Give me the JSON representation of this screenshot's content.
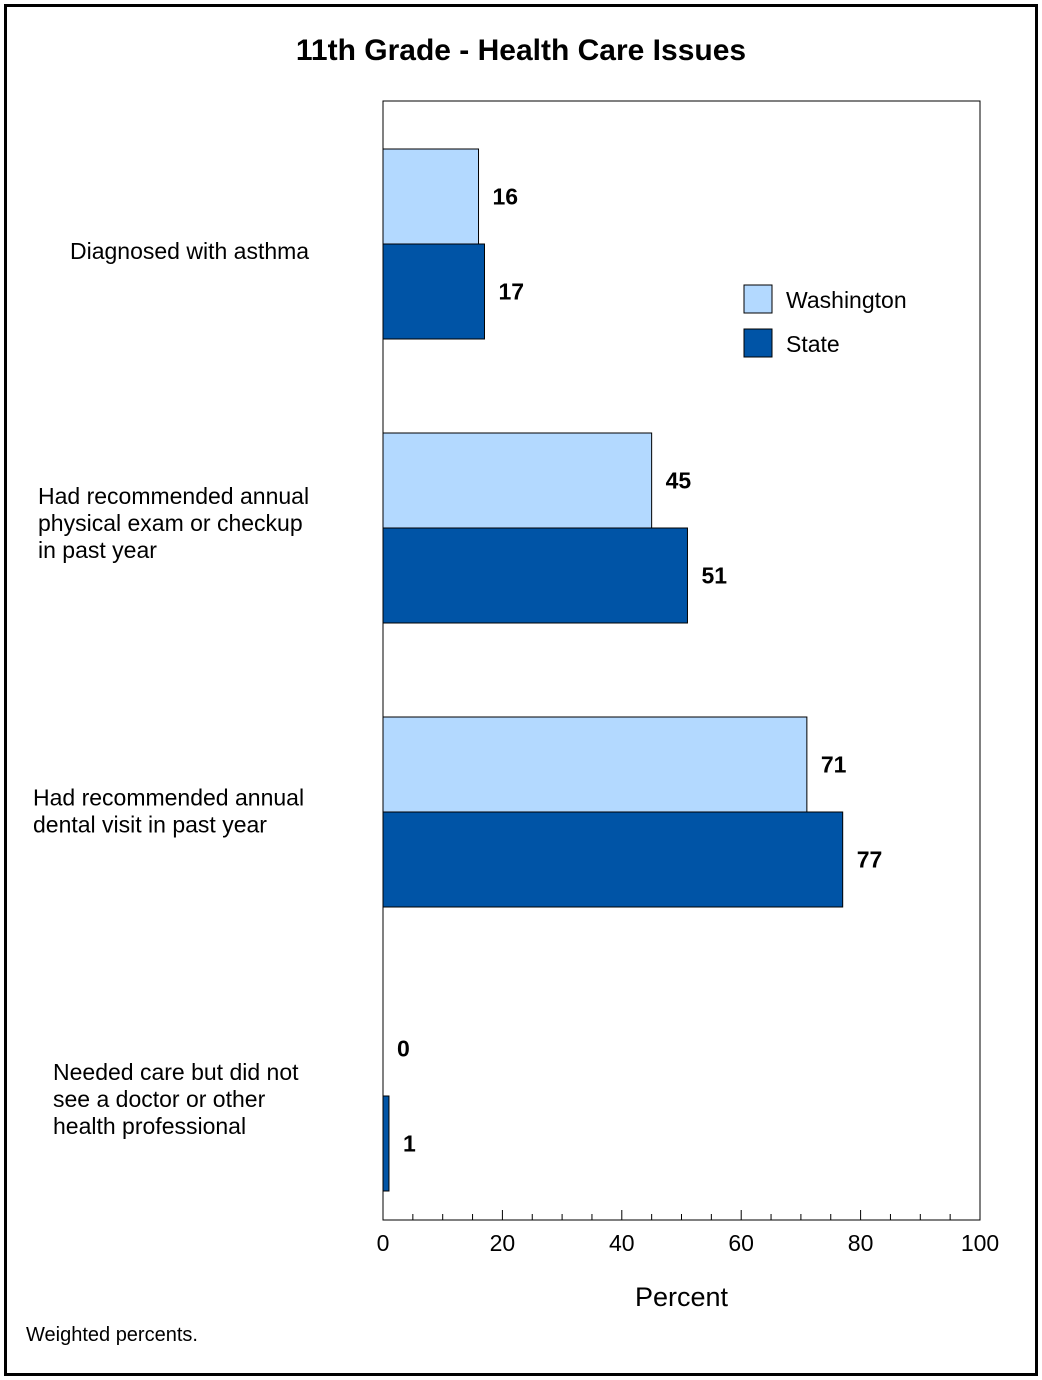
{
  "footnote": "Weighted percents.",
  "chart_data": {
    "type": "bar",
    "orientation": "horizontal",
    "title": "11th Grade - Health Care Issues",
    "xlabel": "Percent",
    "ylabel": "",
    "xlim": [
      0,
      100
    ],
    "x_ticks": [
      0,
      20,
      40,
      60,
      80,
      100
    ],
    "grid": false,
    "legend_position": "right",
    "categories": [
      [
        "Diagnosed with asthma"
      ],
      [
        "Had recommended annual",
        "physical exam or checkup",
        "in past year"
      ],
      [
        "Had recommended annual",
        "dental visit in past year"
      ],
      [
        "Needed care but did not",
        "see a doctor or other",
        "health professional"
      ]
    ],
    "series": [
      {
        "name": "Washington",
        "color": "#b3d9ff",
        "values": [
          16,
          45,
          71,
          0
        ]
      },
      {
        "name": "State",
        "color": "#0054a6",
        "values": [
          17,
          51,
          77,
          1
        ]
      }
    ]
  }
}
